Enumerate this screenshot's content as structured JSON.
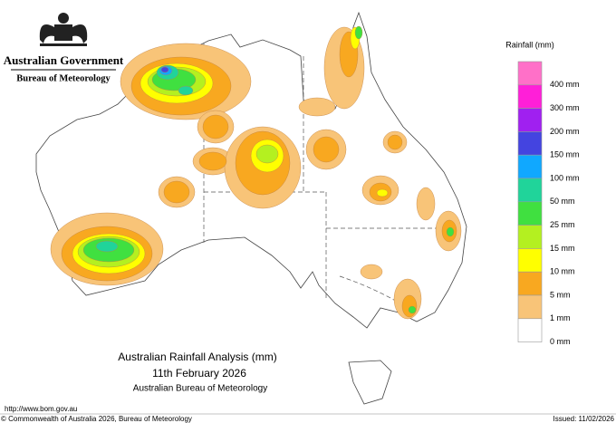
{
  "header": {
    "government": "Australian Government",
    "agency": "Bureau of Meteorology"
  },
  "legend": {
    "title": "Rainfall (mm)",
    "items": [
      {
        "color": "#ff70c8",
        "label": "400 mm"
      },
      {
        "color": "#ff1fd8",
        "label": "300 mm"
      },
      {
        "color": "#a020f0",
        "label": "200 mm"
      },
      {
        "color": "#4444e0",
        "label": "150 mm"
      },
      {
        "color": "#10a8ff",
        "label": "100 mm"
      },
      {
        "color": "#20d49a",
        "label": "50 mm"
      },
      {
        "color": "#40e040",
        "label": "25 mm"
      },
      {
        "color": "#b4f020",
        "label": "15 mm"
      },
      {
        "color": "#ffff00",
        "label": "10 mm"
      },
      {
        "color": "#f8a820",
        "label": "5 mm"
      },
      {
        "color": "#f8c478",
        "label": "1 mm"
      },
      {
        "color": "#ffffff",
        "label": "0 mm"
      }
    ]
  },
  "caption": {
    "title": "Australian Rainfall Analysis (mm)",
    "date": "11th February 2026",
    "source": "Australian Bureau of Meteorology"
  },
  "footer": {
    "url": "http://www.bom.gov.au",
    "copyright": "© Commonwealth of Australia 2026, Bureau of Meteorology",
    "issued": "Issued: 11/02/2026"
  }
}
